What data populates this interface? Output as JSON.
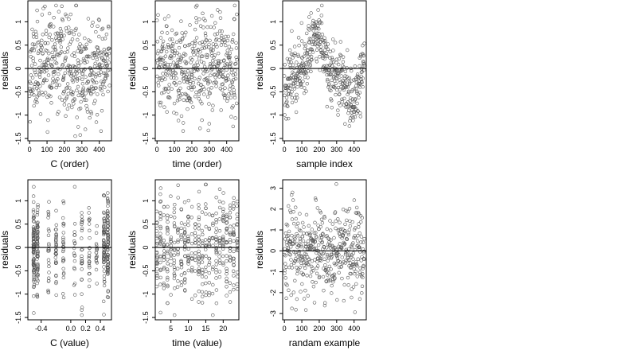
{
  "chart_data": [
    {
      "type": "scatter",
      "xlabel": "C (order)",
      "ylabel": "residuals",
      "xlim": [
        -10,
        470
      ],
      "ylim": [
        -1.55,
        1.45
      ],
      "xticks": [
        0,
        100,
        200,
        300,
        400
      ],
      "yticks": [
        -1.5,
        -1.0,
        -0.5,
        0.0,
        0.5,
        1.0
      ],
      "reference_line_y": 0,
      "point_count": 460,
      "point_style": "open circles",
      "seed": 11,
      "pattern": "order"
    },
    {
      "type": "scatter",
      "xlabel": "time (order)",
      "ylabel": "residuals",
      "xlim": [
        -10,
        470
      ],
      "ylim": [
        -1.55,
        1.45
      ],
      "xticks": [
        0,
        100,
        200,
        300,
        400
      ],
      "yticks": [
        -1.5,
        -1.0,
        -0.5,
        0.0,
        0.5,
        1.0
      ],
      "reference_line_y": 0,
      "point_count": 460,
      "point_style": "open circles",
      "seed": 23,
      "pattern": "uniform"
    },
    {
      "type": "scatter",
      "xlabel": "sample index",
      "ylabel": "residuals",
      "xlim": [
        -10,
        470
      ],
      "ylim": [
        -1.55,
        1.45
      ],
      "xticks": [
        0,
        100,
        200,
        300,
        400
      ],
      "yticks": [
        -1.5,
        -1.0,
        -0.5,
        0.0,
        0.5,
        1.0
      ],
      "reference_line_y": 0,
      "point_count": 460,
      "point_style": "open circles",
      "seed": 37,
      "pattern": "wave"
    },
    {
      "type": "scatter",
      "xlabel": "C (value)",
      "ylabel": "residuals",
      "xlim": [
        -0.58,
        0.55
      ],
      "ylim": [
        -1.55,
        1.45
      ],
      "xticks": [
        -0.4,
        0.0,
        0.2,
        0.4
      ],
      "xtick_labels": [
        "-0.4",
        "0.0",
        "0.2",
        "0.4"
      ],
      "yticks": [
        -1.5,
        -1.0,
        -0.5,
        0.0,
        0.5,
        1.0
      ],
      "reference_line_y": 0,
      "point_count": 460,
      "point_style": "open circles",
      "seed": 41,
      "pattern": "cvalue",
      "x_levels": [
        -0.5,
        -0.45,
        -0.3,
        -0.2,
        -0.1,
        0.05,
        0.15,
        0.25,
        0.35,
        0.45,
        0.5
      ]
    },
    {
      "type": "scatter",
      "xlabel": "time (value)",
      "ylabel": "residuals",
      "xlim": [
        0.5,
        24.5
      ],
      "ylim": [
        -1.55,
        1.45
      ],
      "xticks": [
        5,
        10,
        15,
        20
      ],
      "yticks": [
        -1.5,
        -1.0,
        -0.5,
        0.0,
        0.5,
        1.0
      ],
      "reference_line_y": 0,
      "point_count": 460,
      "point_style": "open circles",
      "seed": 53,
      "pattern": "tvalue",
      "x_levels": [
        1,
        2,
        3,
        4,
        5,
        6,
        7,
        8,
        9,
        10,
        11,
        12,
        13,
        14,
        15,
        16,
        17,
        18,
        19,
        20,
        21,
        22,
        23,
        24
      ]
    },
    {
      "type": "scatter",
      "xlabel": "randam example",
      "ylabel": "residuals",
      "xlim": [
        -10,
        470
      ],
      "ylim": [
        -3.3,
        3.4
      ],
      "xticks": [
        0,
        100,
        200,
        300,
        400
      ],
      "yticks": [
        -3,
        -2,
        -1,
        0,
        1,
        2,
        3
      ],
      "reference_line_y": 0,
      "point_count": 460,
      "point_style": "open circles",
      "seed": 67,
      "pattern": "normal"
    }
  ]
}
